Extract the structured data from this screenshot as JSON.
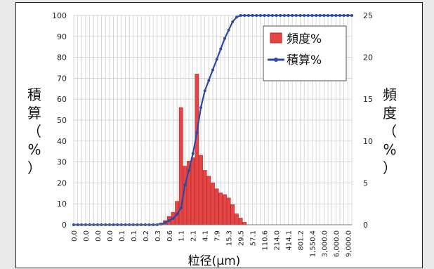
{
  "chart_data": {
    "type": "bar+line",
    "xlabel": "粒径(μm)",
    "ylabel_left": [
      "積",
      "算",
      "（",
      "%",
      "）"
    ],
    "ylabel_right": [
      "頻",
      "度",
      "（",
      "%",
      "）"
    ],
    "ylim_left": [
      0,
      100
    ],
    "yticks_left": [
      0,
      10,
      20,
      30,
      40,
      50,
      60,
      70,
      80,
      90,
      100
    ],
    "ylim_right": [
      0,
      25
    ],
    "yticks_right": [
      0,
      5,
      10,
      15,
      20,
      25
    ],
    "grid": true,
    "legend_position": "top-right",
    "x_tick_labels": [
      "0.0",
      "0.0",
      "0.0",
      "0.0",
      "0.1",
      "0.1",
      "0.2",
      "0.3",
      "0.6",
      "1.1",
      "2.1",
      "4.1",
      "7.9",
      "15.3",
      "29.5",
      "57.1",
      "110.6",
      "214.0",
      "414.1",
      "801.2",
      "1,550.4",
      "3,000.0",
      "6,000.0",
      "9,000.0"
    ],
    "series": [
      {
        "name": "頻度%",
        "axis": "right",
        "kind": "bar",
        "color": "#e64545",
        "values": [
          0,
          0,
          0,
          0,
          0,
          0,
          0,
          0,
          0,
          0,
          0,
          0,
          0,
          0,
          0,
          0,
          0,
          0,
          0,
          0,
          0,
          0,
          0.2,
          0.5,
          1.0,
          1.5,
          2.8,
          14.0,
          7.0,
          7.6,
          8.0,
          18.0,
          8.3,
          6.5,
          5.8,
          5.0,
          4.3,
          3.8,
          3.6,
          3.2,
          2.4,
          1.3,
          0.8,
          0.3,
          0,
          0,
          0,
          0,
          0,
          0,
          0,
          0,
          0,
          0,
          0,
          0,
          0,
          0,
          0,
          0,
          0,
          0,
          0,
          0,
          0,
          0,
          0,
          0,
          0,
          0,
          0
        ]
      },
      {
        "name": "積算%",
        "axis": "left",
        "kind": "line",
        "color": "#2b4aa6",
        "values": [
          0,
          0,
          0,
          0,
          0,
          0,
          0,
          0,
          0,
          0,
          0,
          0,
          0,
          0,
          0,
          0,
          0,
          0,
          0,
          0,
          0,
          0,
          0.3,
          1,
          2,
          3,
          5,
          8,
          19,
          26,
          34,
          44,
          56,
          64,
          69,
          74,
          79,
          84,
          89,
          93,
          97,
          99.2,
          100,
          100,
          100,
          100,
          100,
          100,
          100,
          100,
          100,
          100,
          100,
          100,
          100,
          100,
          100,
          100,
          100,
          100,
          100,
          100,
          100,
          100,
          100,
          100,
          100,
          100,
          100,
          100,
          100
        ]
      }
    ]
  }
}
